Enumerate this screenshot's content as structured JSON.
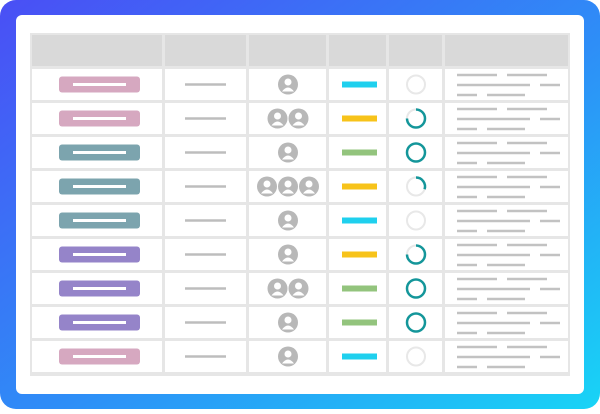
{
  "rows": [
    {
      "tag_color": "#d6a8c0",
      "avatars": 1,
      "status_color": "#1fd0ee",
      "progress": 0
    },
    {
      "tag_color": "#d6a8c0",
      "avatars": 2,
      "status_color": "#f7c31a",
      "progress": 0.75
    },
    {
      "tag_color": "#7ca4ae",
      "avatars": 1,
      "status_color": "#93c47d",
      "progress": 1
    },
    {
      "tag_color": "#7ca4ae",
      "avatars": 3,
      "status_color": "#f7c31a",
      "progress": 0.3
    },
    {
      "tag_color": "#7ca4ae",
      "avatars": 1,
      "status_color": "#1fd0ee",
      "progress": 0
    },
    {
      "tag_color": "#9584c9",
      "avatars": 1,
      "status_color": "#f7c31a",
      "progress": 0.75
    },
    {
      "tag_color": "#9584c9",
      "avatars": 2,
      "status_color": "#93c47d",
      "progress": 1
    },
    {
      "tag_color": "#9584c9",
      "avatars": 1,
      "status_color": "#93c47d",
      "progress": 1
    },
    {
      "tag_color": "#d6a8c0",
      "avatars": 1,
      "status_color": "#1fd0ee",
      "progress": 0
    }
  ]
}
